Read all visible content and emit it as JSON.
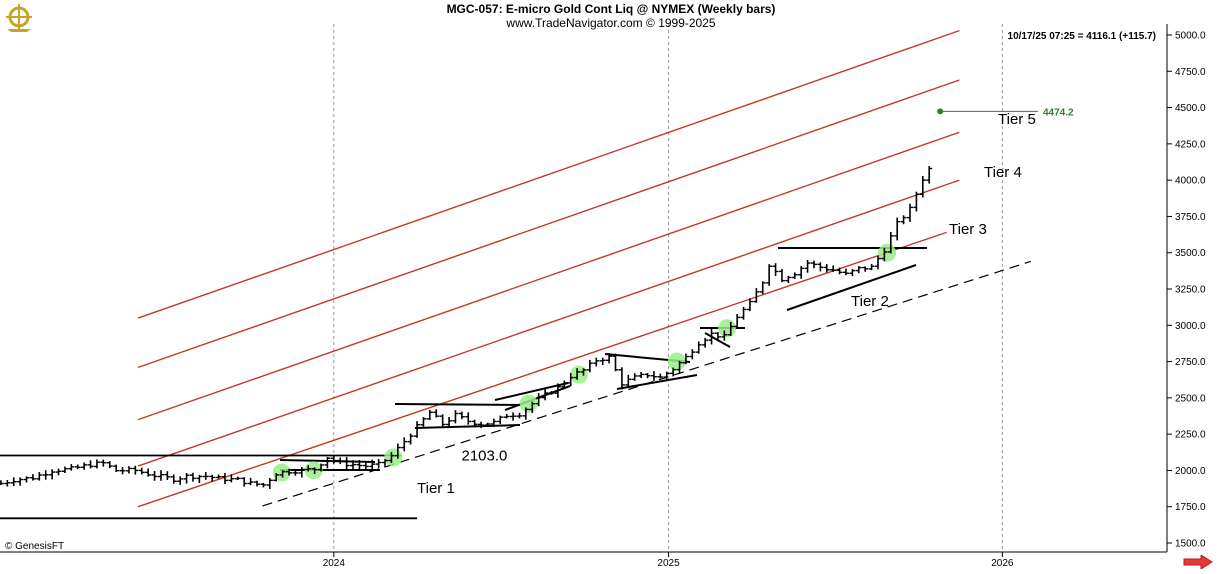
{
  "header": {
    "title": "MGC-057:  E-micro Gold Cont Liq @ NYMEX  (Weekly bars)",
    "subtitle": "www.TradeNavigator.com © 1999-2025",
    "readout": "10/17/25 07:25 = 4116.1 (+115.7)",
    "copyright": "© GenesisFT"
  },
  "icons": {
    "logo": "ship-wheel-logo-icon",
    "scroll": "right-arrow-icon"
  },
  "colors": {
    "channel": "#c0392b",
    "bars": "#000000",
    "target": "#2e7d32",
    "highlight": "#99ee88",
    "gridline": "#999999"
  },
  "chart_data": {
    "type": "ohlc",
    "x_ticks": [
      "2024",
      "2025",
      "2026"
    ],
    "y_ticks": [
      1500,
      1750,
      2000,
      2250,
      2500,
      2750,
      3000,
      3250,
      3500,
      3750,
      4000,
      4250,
      4500,
      4750,
      5000
    ],
    "ylim": [
      1420,
      5050
    ],
    "x_range": [
      "2023-01-01",
      "2026-06-30"
    ],
    "grid": "vertical dashed at year starts",
    "series_weekly_close": [
      [
        "2023-01-02",
        1910
      ],
      [
        "2023-01-16",
        1935
      ],
      [
        "2023-02-06",
        1950
      ],
      [
        "2023-02-27",
        2000
      ],
      [
        "2023-03-20",
        2010
      ],
      [
        "2023-04-10",
        2040
      ],
      [
        "2023-04-24",
        2050
      ],
      [
        "2023-05-08",
        2000
      ],
      [
        "2023-05-29",
        2000
      ],
      [
        "2023-06-19",
        1965
      ],
      [
        "2023-07-10",
        1940
      ],
      [
        "2023-07-24",
        1960
      ],
      [
        "2023-08-14",
        1960
      ],
      [
        "2023-08-28",
        1945
      ],
      [
        "2023-09-18",
        1935
      ],
      [
        "2023-10-02",
        1910
      ],
      [
        "2023-10-16",
        1900
      ],
      [
        "2023-10-30",
        1980
      ],
      [
        "2023-11-13",
        1995
      ],
      [
        "2023-11-27",
        2000
      ],
      [
        "2023-12-11",
        2010
      ],
      [
        "2023-12-25",
        2090
      ],
      [
        "2024-01-08",
        2050
      ],
      [
        "2024-01-22",
        2040
      ],
      [
        "2024-02-05",
        2030
      ],
      [
        "2024-02-19",
        2040
      ],
      [
        "2024-03-04",
        2100
      ],
      [
        "2024-03-18",
        2200
      ],
      [
        "2024-04-01",
        2300
      ],
      [
        "2024-04-15",
        2400
      ],
      [
        "2024-04-29",
        2320
      ],
      [
        "2024-05-13",
        2380
      ],
      [
        "2024-05-27",
        2340
      ],
      [
        "2024-06-10",
        2320
      ],
      [
        "2024-06-24",
        2330
      ],
      [
        "2024-07-08",
        2380
      ],
      [
        "2024-07-22",
        2390
      ],
      [
        "2024-08-05",
        2460
      ],
      [
        "2024-08-19",
        2520
      ],
      [
        "2024-09-02",
        2570
      ],
      [
        "2024-09-16",
        2650
      ],
      [
        "2024-09-30",
        2690
      ],
      [
        "2024-10-14",
        2760
      ],
      [
        "2024-10-28",
        2780
      ],
      [
        "2024-11-11",
        2600
      ],
      [
        "2024-11-25",
        2640
      ],
      [
        "2024-12-09",
        2660
      ],
      [
        "2024-12-23",
        2640
      ],
      [
        "2025-01-06",
        2700
      ],
      [
        "2025-01-20",
        2780
      ],
      [
        "2025-02-03",
        2880
      ],
      [
        "2025-02-17",
        2940
      ],
      [
        "2025-03-03",
        2920
      ],
      [
        "2025-03-17",
        3060
      ],
      [
        "2025-03-31",
        3150
      ],
      [
        "2025-04-14",
        3300
      ],
      [
        "2025-04-21",
        3420
      ],
      [
        "2025-05-05",
        3320
      ],
      [
        "2025-05-19",
        3360
      ],
      [
        "2025-06-02",
        3430
      ],
      [
        "2025-06-16",
        3400
      ],
      [
        "2025-06-30",
        3380
      ],
      [
        "2025-07-14",
        3350
      ],
      [
        "2025-07-28",
        3390
      ],
      [
        "2025-08-11",
        3400
      ],
      [
        "2025-08-25",
        3520
      ],
      [
        "2025-09-08",
        3700
      ],
      [
        "2025-09-22",
        3800
      ],
      [
        "2025-10-06",
        4010
      ],
      [
        "2025-10-17",
        4116.1
      ]
    ],
    "channel_lines": [
      {
        "from": [
          "2023-06-01",
          2030
        ],
        "to": [
          "2025-11-15",
          4000
        ]
      },
      {
        "from": [
          "2023-06-01",
          2350
        ],
        "to": [
          "2025-11-15",
          4330
        ]
      },
      {
        "from": [
          "2023-06-01",
          2710
        ],
        "to": [
          "2025-11-15",
          4690
        ]
      },
      {
        "from": [
          "2023-06-01",
          3050
        ],
        "to": [
          "2025-11-15",
          5030
        ]
      },
      {
        "from": [
          "2023-06-01",
          1750
        ],
        "to": [
          "2025-11-01",
          3640
        ]
      }
    ],
    "support_line_dashed": {
      "from": [
        "2023-10-15",
        1755
      ],
      "to": [
        "2026-02-01",
        3440
      ]
    },
    "horizontal_lines": [
      {
        "from": [
          "2023-01-01",
          2103.0
        ],
        "to": [
          "2024-03-15",
          2103.0
        ],
        "label": "2103.0"
      },
      {
        "from": [
          "2023-01-01",
          1670
        ],
        "to": [
          "2024-04-01",
          1670
        ]
      }
    ],
    "target": {
      "x": "2025-10-25",
      "y": 4474.2,
      "label": "4474.2"
    },
    "tier_labels": [
      "Tier 1",
      "Tier 2",
      "Tier 3",
      "Tier 4",
      "Tier 5"
    ],
    "highlight_points": [
      [
        "2023-11-05",
        1985
      ],
      [
        "2023-12-10",
        2000
      ],
      [
        "2024-03-06",
        2090
      ],
      [
        "2024-08-01",
        2460
      ],
      [
        "2024-09-25",
        2660
      ],
      [
        "2025-01-10",
        2750
      ],
      [
        "2025-03-06",
        2980
      ],
      [
        "2025-08-28",
        3500
      ]
    ]
  }
}
